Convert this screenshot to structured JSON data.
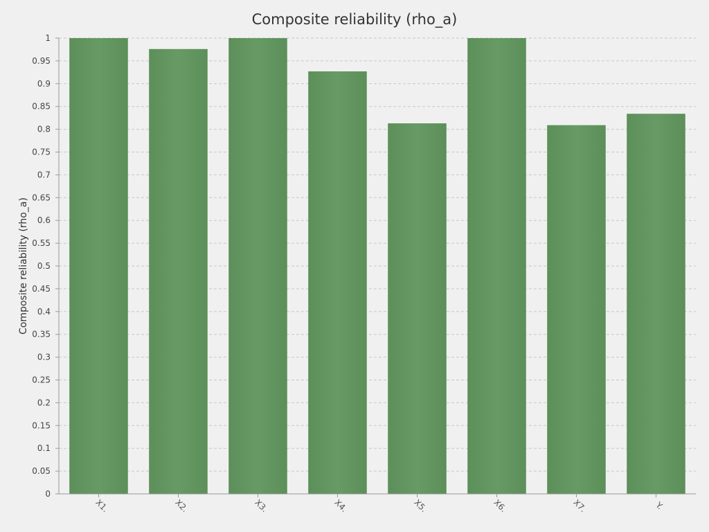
{
  "chart_data": {
    "type": "bar",
    "title": "Composite reliability (rho_a)",
    "xlabel": "",
    "ylabel": "Composite reliability (rho_a)",
    "categories": [
      "X1.",
      "X2.",
      "X3.",
      "X4.",
      "X5.",
      "X6.",
      "X7.",
      "Y."
    ],
    "values": [
      1.0,
      0.976,
      1.0,
      0.927,
      0.813,
      1.0,
      0.809,
      0.834
    ],
    "ylim": [
      0,
      1
    ],
    "yticks": [
      "0",
      "0.05",
      "0.1",
      "0.15",
      "0.2",
      "0.25",
      "0.3",
      "0.35",
      "0.4",
      "0.45",
      "0.5",
      "0.55",
      "0.6",
      "0.65",
      "0.7",
      "0.75",
      "0.8",
      "0.85",
      "0.9",
      "0.95",
      "1"
    ],
    "grid": true,
    "legend": "none",
    "bar_color": "#62955f",
    "background": "#f0f0f0"
  }
}
